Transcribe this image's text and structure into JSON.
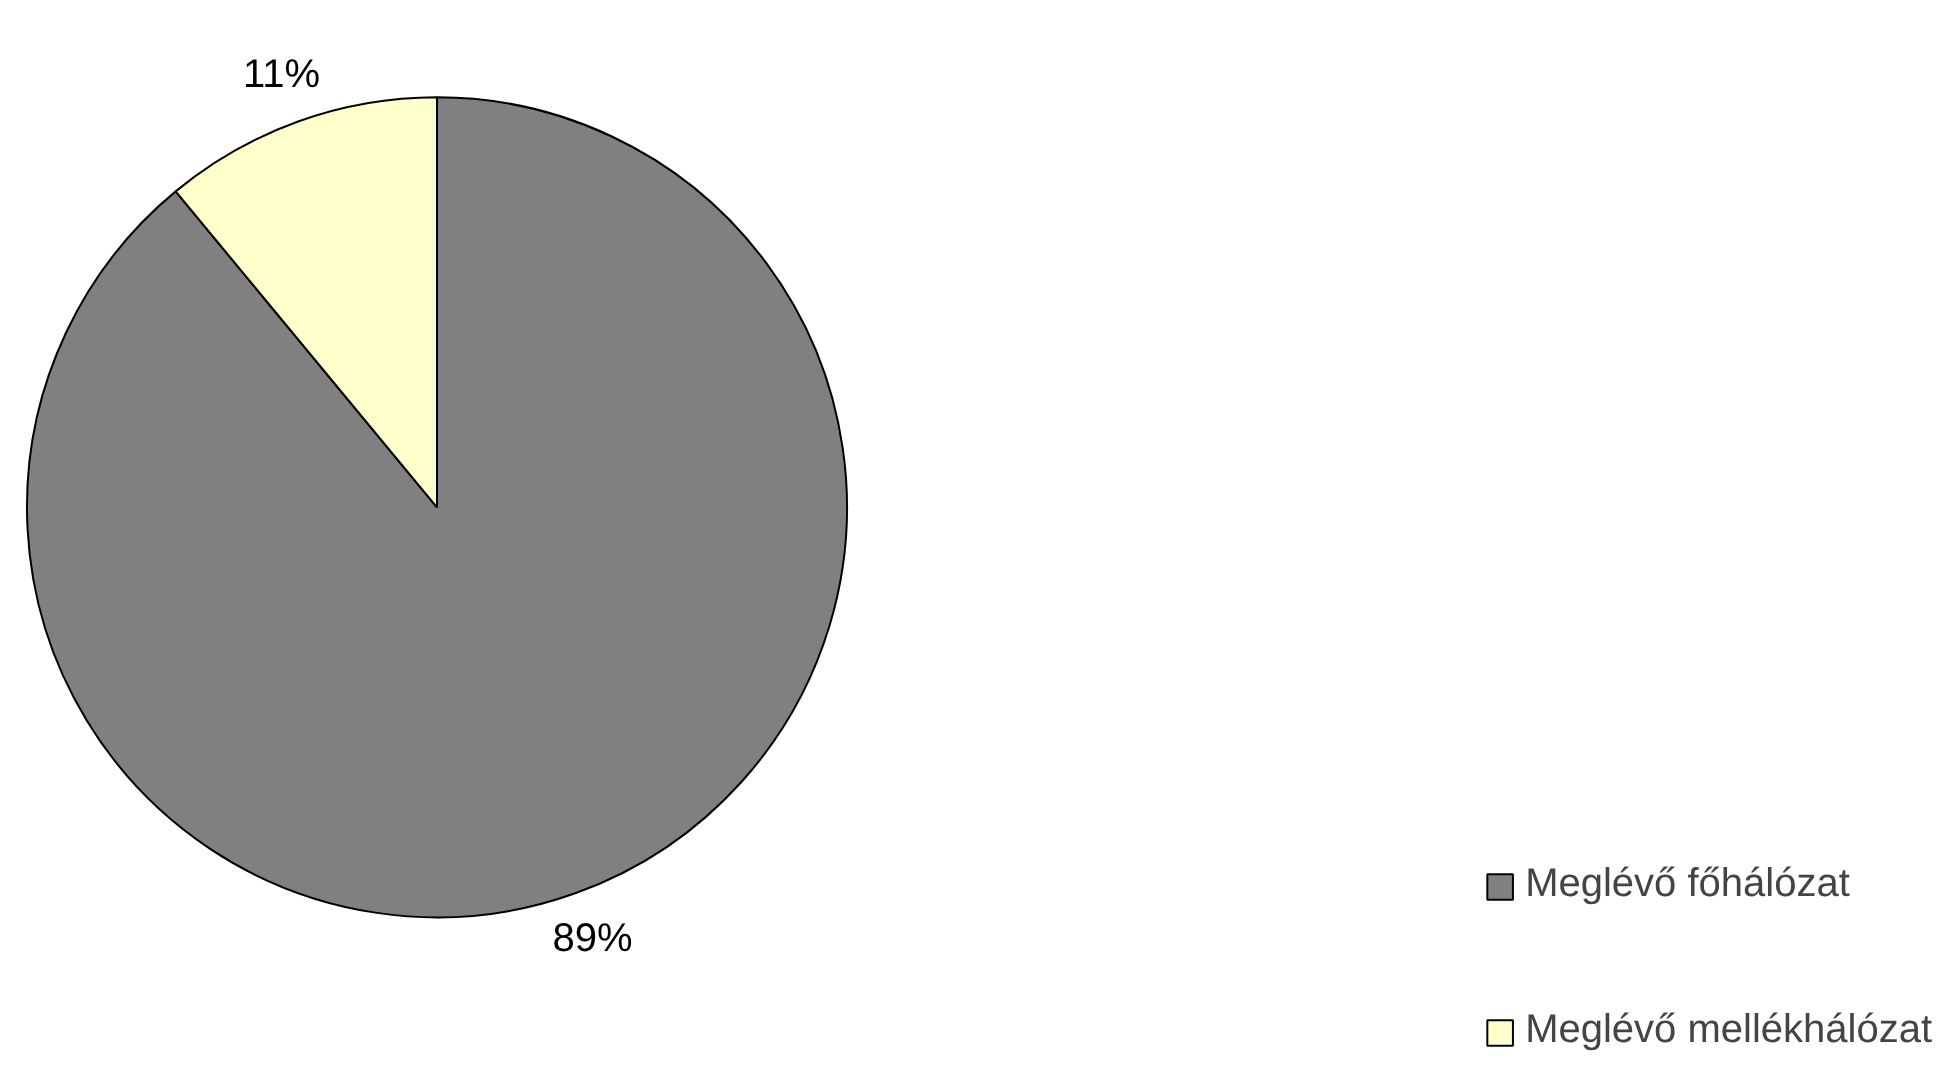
{
  "chart_data": {
    "type": "pie",
    "categories": [
      "Meglévő főhálózat",
      "Meglévő mellékhálózat"
    ],
    "values": [
      89,
      11
    ],
    "colors": [
      "#808080",
      "#ffffcc"
    ],
    "value_labels": [
      "89%",
      "11%"
    ],
    "legend": "bottom right"
  }
}
